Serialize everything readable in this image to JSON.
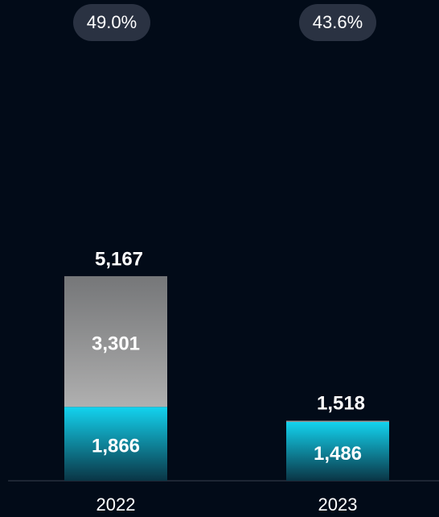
{
  "chart_data": {
    "type": "stacked_bar",
    "categories": [
      "2022",
      "2023"
    ],
    "series": [
      {
        "color": "#13d3ef",
        "values": [
          1866,
          1486
        ],
        "value_labels": [
          "1,866",
          "1,486"
        ]
      },
      {
        "color": "#8a8a8a",
        "values": [
          3301,
          32
        ],
        "value_labels": [
          "3,301",
          null
        ]
      }
    ],
    "totals": [
      5167,
      1518
    ],
    "total_labels": [
      "5,167",
      "1,518"
    ],
    "annotations": [
      "49.0%",
      "43.6%"
    ],
    "ylim": [
      0,
      12000
    ]
  }
}
